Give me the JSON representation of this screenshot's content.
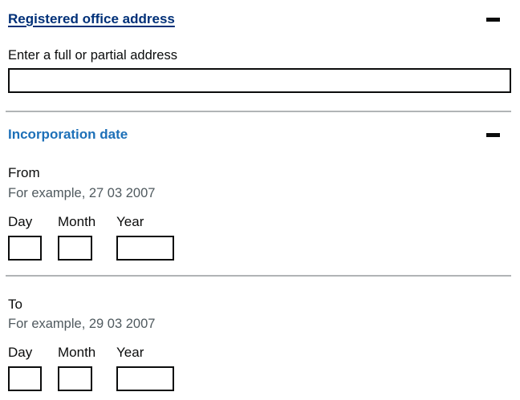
{
  "colors": {
    "link_dark_blue": "#003078",
    "heading_blue": "#1d70b8",
    "text_black": "#0b0c0c",
    "hint_grey": "#505a5f",
    "divider_grey": "#b1b4b6",
    "input_border": "#0b0c0c"
  },
  "icons": {
    "registered_office_toggle": "minus-icon",
    "incorporation_date_toggle": "minus-icon"
  },
  "registered_office_section": {
    "title": "Registered office address",
    "address_field": {
      "label": "Enter a full or partial address",
      "value": "",
      "placeholder": ""
    }
  },
  "incorporation_date_section": {
    "title": "Incorporation date",
    "from_group": {
      "label": "From",
      "hint": "For example, 27 03 2007",
      "fields": {
        "day": {
          "label": "Day",
          "value": ""
        },
        "month": {
          "label": "Month",
          "value": ""
        },
        "year": {
          "label": "Year",
          "value": ""
        }
      }
    },
    "to_group": {
      "label": "To",
      "hint": "For example, 29 03 2007",
      "fields": {
        "day": {
          "label": "Day",
          "value": ""
        },
        "month": {
          "label": "Month",
          "value": ""
        },
        "year": {
          "label": "Year",
          "value": ""
        }
      }
    }
  }
}
